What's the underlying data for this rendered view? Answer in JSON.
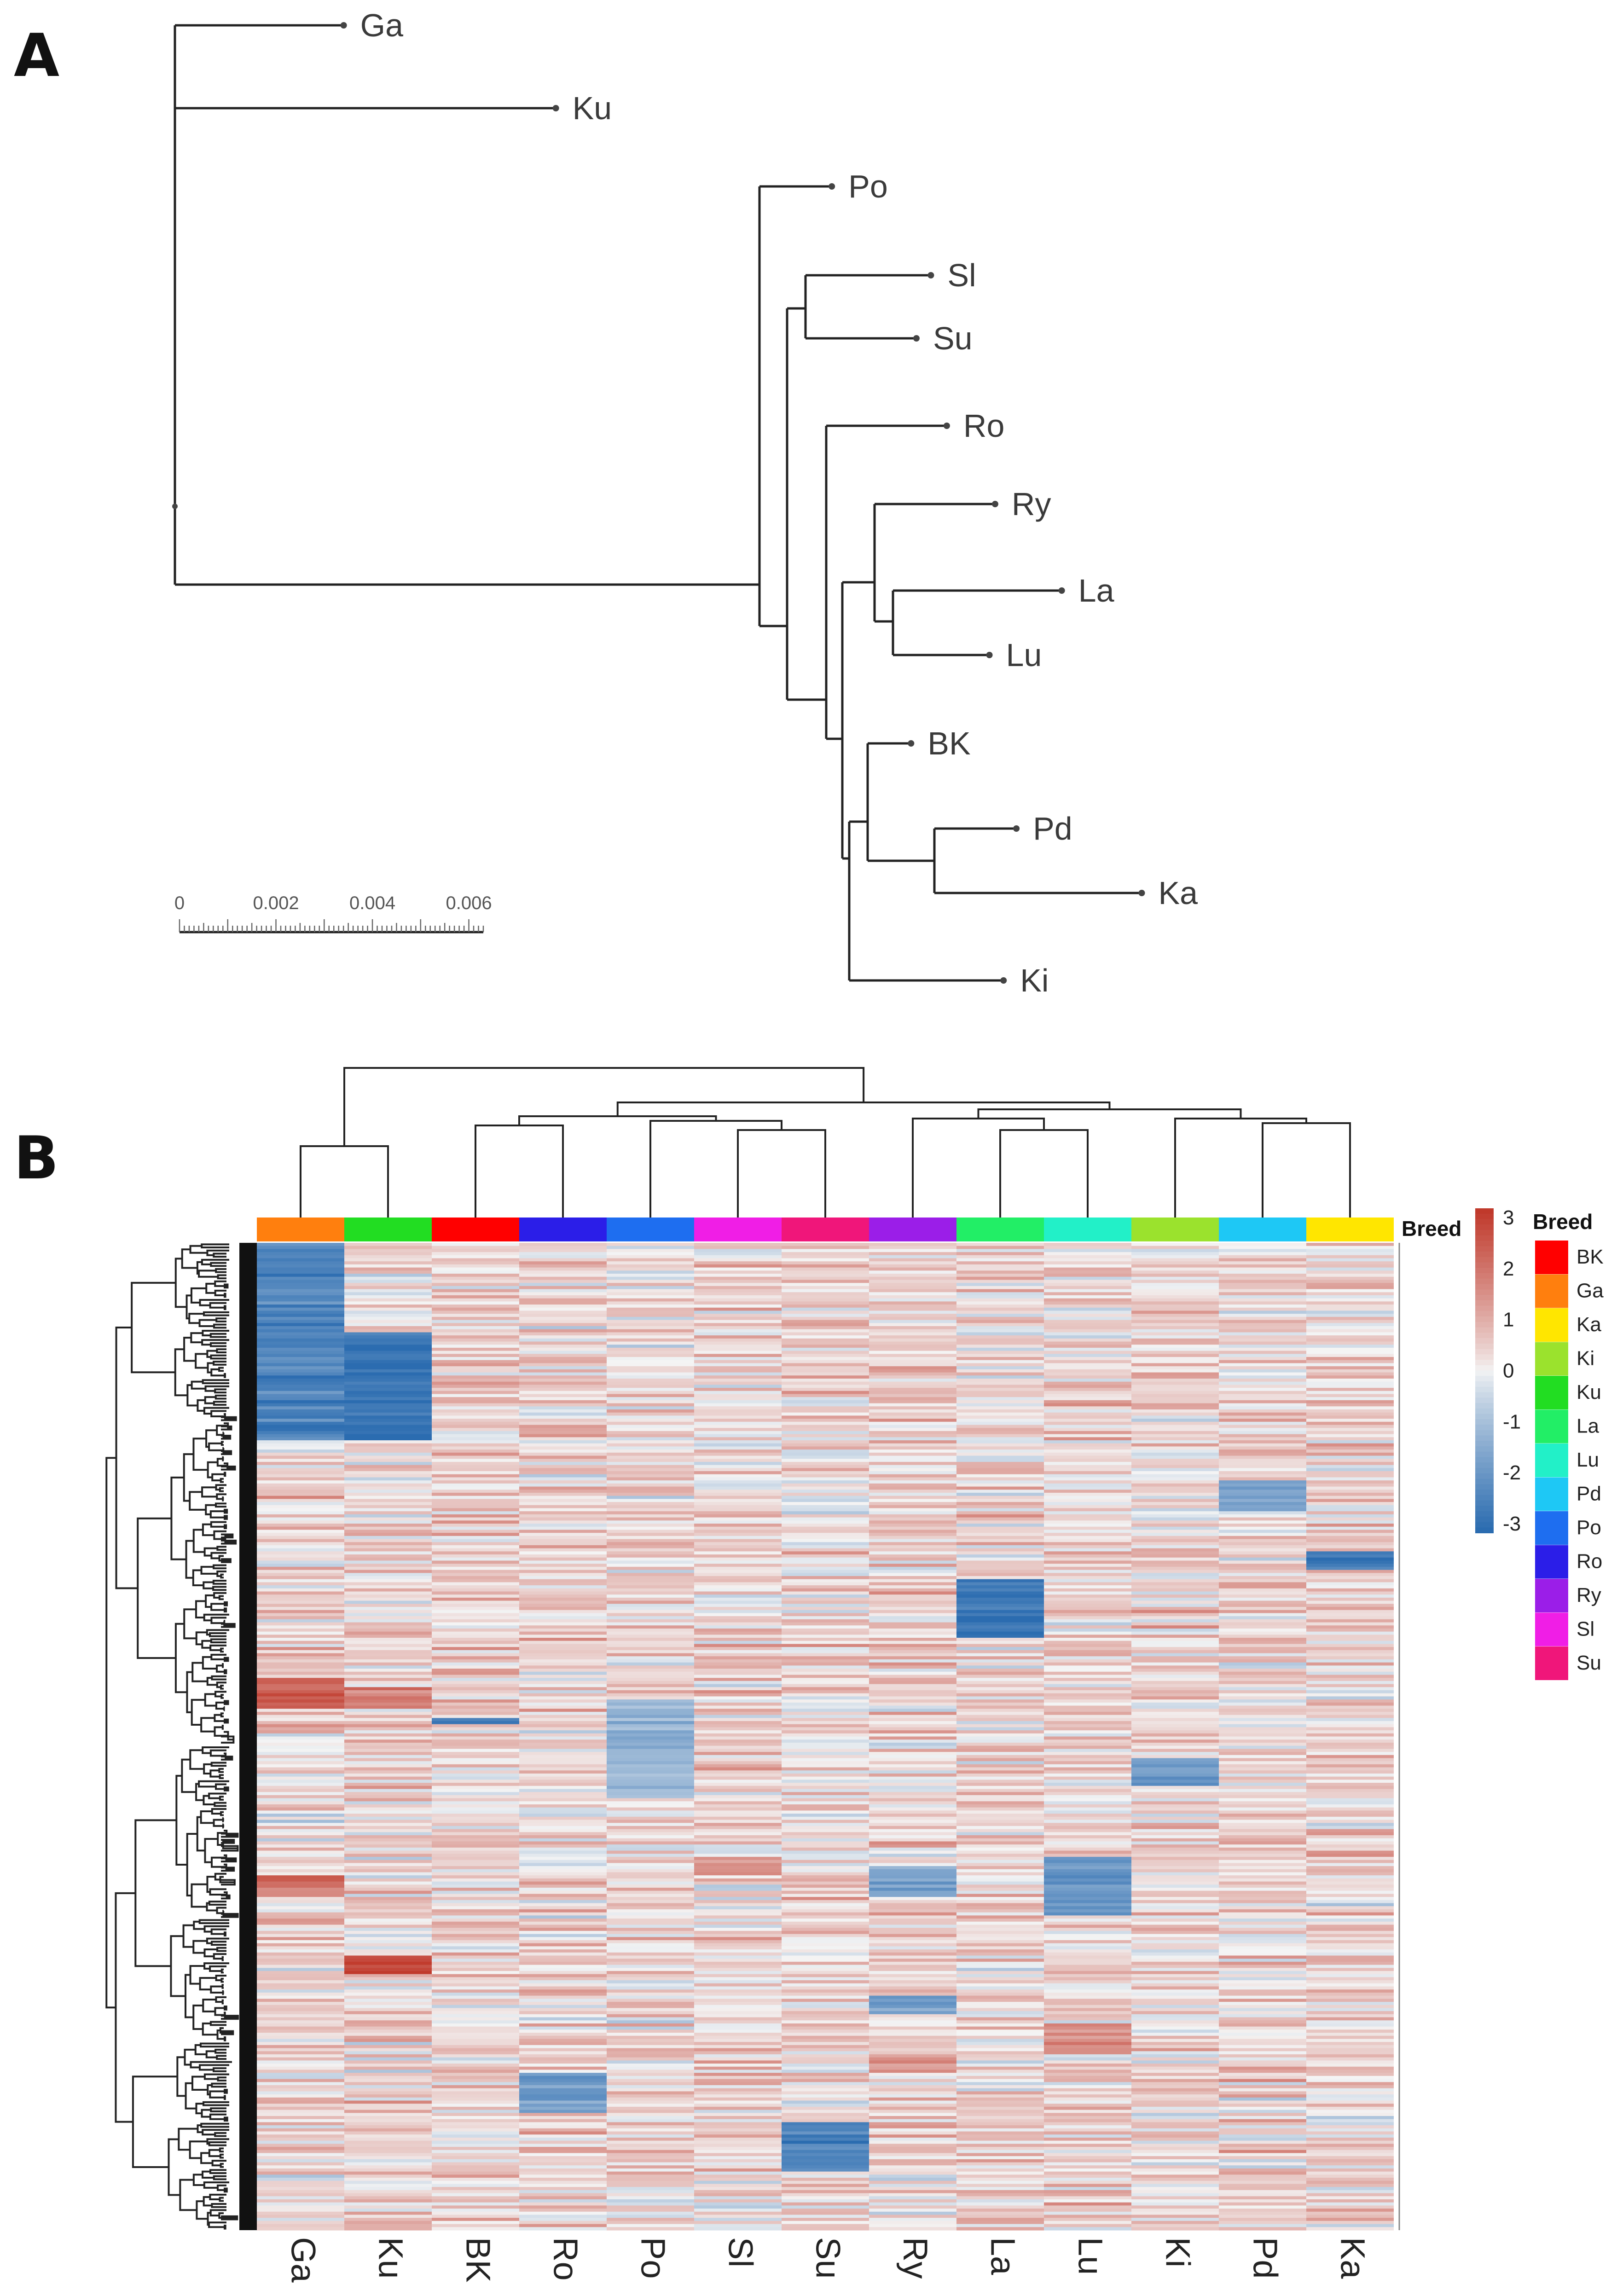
{
  "figure": {
    "panel_a_letter": "A",
    "panel_b_letter": "B"
  },
  "chart_data": [
    {
      "type": "tree",
      "panel": "A",
      "title": "",
      "leaves": [
        "Ga",
        "Ku",
        "Po",
        "Sl",
        "Su",
        "Ro",
        "Ry",
        "La",
        "Lu",
        "BK",
        "Pd",
        "Ka",
        "Ki"
      ],
      "branch_lengths": [
        0.0035,
        0.0079,
        0.0015,
        0.0026,
        0.0023,
        0.0025,
        0.0025,
        0.0035,
        0.002,
        0.0009,
        0.0017,
        0.0043,
        0.0032
      ],
      "scale_bar": {
        "ticks": [
          "0",
          "0.002",
          "0.004",
          "0.006"
        ],
        "max": 0.0063
      }
    },
    {
      "type": "heatmap",
      "panel": "B",
      "columns": [
        "Ga",
        "Ku",
        "BK",
        "Ro",
        "Po",
        "Sl",
        "Su",
        "Ry",
        "La",
        "Lu",
        "Ki",
        "Pd",
        "Ka"
      ],
      "annotation_title": "Breed",
      "color_scale": {
        "ticks": [
          "3",
          "2",
          "1",
          "0",
          "-1",
          "-2",
          "-3"
        ],
        "min": -3,
        "max": 3,
        "low": "#2b6cb0",
        "mid": "#f4f4f4",
        "high": "#c0392b"
      },
      "legend": {
        "title": "Breed",
        "entries": [
          {
            "name": "BK",
            "color": "#ff0000"
          },
          {
            "name": "Ga",
            "color": "#ff7f0e"
          },
          {
            "name": "Ka",
            "color": "#ffe600"
          },
          {
            "name": "Ki",
            "color": "#9be22d"
          },
          {
            "name": "Ku",
            "color": "#22dd22"
          },
          {
            "name": "La",
            "color": "#22ee66"
          },
          {
            "name": "Lu",
            "color": "#22f0c8"
          },
          {
            "name": "Pd",
            "color": "#1ec8f5"
          },
          {
            "name": "Po",
            "color": "#1e6ef0"
          },
          {
            "name": "Ro",
            "color": "#2b1ee8"
          },
          {
            "name": "Ry",
            "color": "#9b1ee8"
          },
          {
            "name": "Sl",
            "color": "#f01ee6"
          },
          {
            "name": "Su",
            "color": "#f0167a"
          }
        ]
      },
      "row_count": 320,
      "value_pattern": "row-standardized z-scores; blocks of strong negative values: Ga rows 0.00-0.20, Ku rows 0.09-0.20, La rows 0.34-0.40, Ka rows 0.31-0.33, Lu rows 0.62-0.68, Su rows 0.89-0.94, Ro rows 0.84-0.88, Ki rows 0.52-0.55; positive blocks: Ga/Ku rows 0.44-0.47, Ku rows 0.72-0.74"
    }
  ]
}
